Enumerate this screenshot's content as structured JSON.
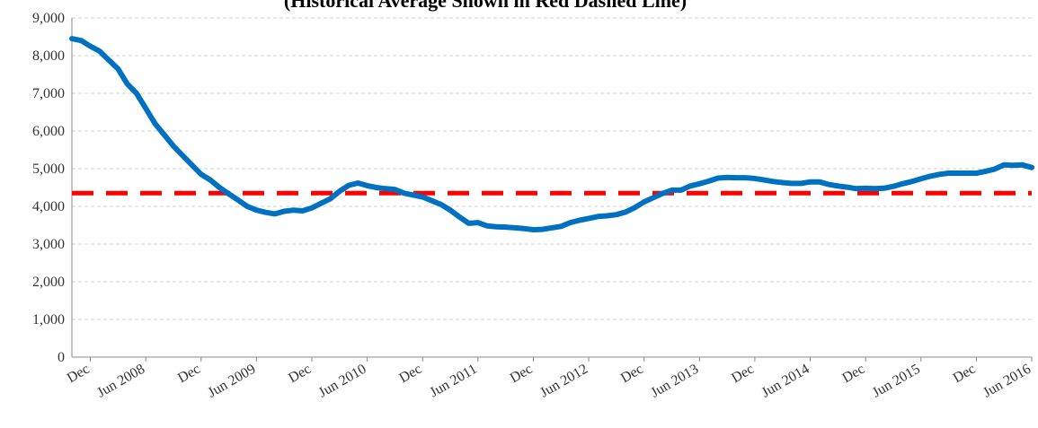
{
  "chart_data": {
    "type": "line",
    "subtitle": "(Historical Average Shown in Red Dashed Line)",
    "categories": [
      null,
      null,
      "Dec",
      null,
      null,
      null,
      null,
      null,
      "Jun 2008",
      null,
      null,
      null,
      null,
      null,
      "Dec",
      null,
      null,
      null,
      null,
      null,
      "Jun 2009",
      null,
      null,
      null,
      null,
      null,
      "Dec",
      null,
      null,
      null,
      null,
      null,
      "Jun 2010",
      null,
      null,
      null,
      null,
      null,
      "Dec",
      null,
      null,
      null,
      null,
      null,
      "Jun 2011",
      null,
      null,
      null,
      null,
      null,
      "Dec",
      null,
      null,
      null,
      null,
      null,
      "Jun 2012",
      null,
      null,
      null,
      null,
      null,
      "Dec",
      null,
      null,
      null,
      null,
      null,
      "Jun 2013",
      null,
      null,
      null,
      null,
      null,
      "Dec",
      null,
      null,
      null,
      null,
      null,
      "Jun 2014",
      null,
      null,
      null,
      null,
      null,
      "Dec",
      null,
      null,
      null,
      null,
      null,
      "Jun 2015",
      null,
      null,
      null,
      null,
      null,
      "Dec",
      null,
      null,
      null,
      null,
      null,
      "Jun 2016"
    ],
    "values": [
      8450,
      8400,
      8250,
      8120,
      7880,
      7650,
      7250,
      7000,
      6600,
      6200,
      5900,
      5600,
      5350,
      5100,
      4850,
      4700,
      4500,
      4330,
      4170,
      4000,
      3900,
      3840,
      3800,
      3870,
      3900,
      3880,
      3960,
      4080,
      4200,
      4400,
      4560,
      4620,
      4550,
      4500,
      4470,
      4450,
      4350,
      4300,
      4250,
      4150,
      4050,
      3900,
      3720,
      3550,
      3570,
      3480,
      3460,
      3450,
      3430,
      3410,
      3380,
      3390,
      3430,
      3470,
      3570,
      3630,
      3680,
      3730,
      3750,
      3780,
      3850,
      3970,
      4120,
      4230,
      4340,
      4430,
      4430,
      4540,
      4600,
      4670,
      4750,
      4770,
      4760,
      4760,
      4740,
      4700,
      4660,
      4630,
      4610,
      4610,
      4650,
      4650,
      4580,
      4540,
      4510,
      4470,
      4480,
      4470,
      4480,
      4530,
      4600,
      4660,
      4730,
      4800,
      4850,
      4880,
      4880,
      4880,
      4880,
      4930,
      4990,
      5100,
      5090,
      5100,
      5030
    ],
    "color": "#0070c0",
    "average_line": {
      "value": 4350,
      "color": "#ff0000"
    },
    "ylim": [
      0,
      9000
    ],
    "yticks": [
      0,
      {
        "value": 1000,
        "label": "1,000"
      },
      {
        "value": 2000,
        "label": "2,000"
      },
      {
        "value": 3000,
        "label": "3,000"
      },
      {
        "value": 4000,
        "label": "4,000"
      },
      {
        "value": 5000,
        "label": "5,000"
      },
      {
        "value": 6000,
        "label": "6,000"
      },
      {
        "value": 7000,
        "label": "7,000"
      },
      {
        "value": 8000,
        "label": "8,000"
      },
      {
        "value": 9000,
        "label": "9,000"
      }
    ],
    "grid": true
  }
}
